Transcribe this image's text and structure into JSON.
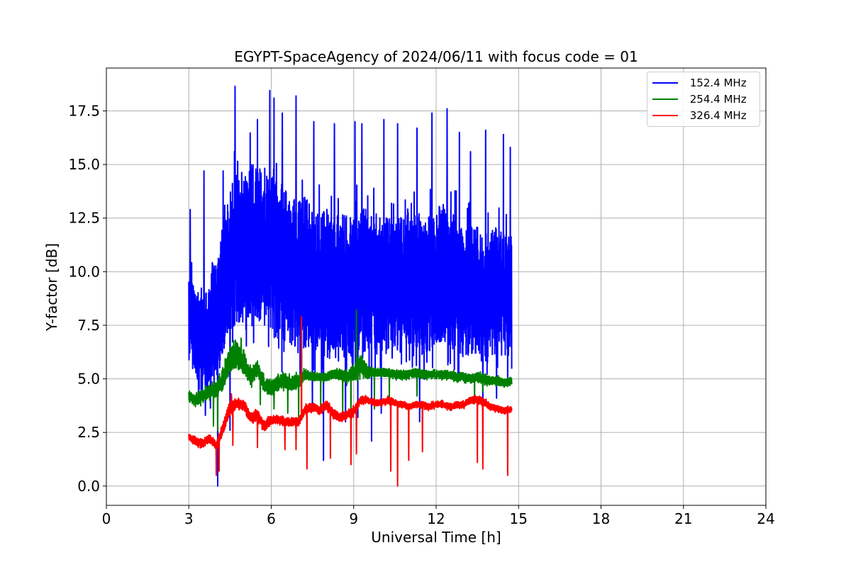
{
  "chart_data": {
    "type": "line",
    "title": "EGYPT-SpaceAgency of 2024/06/11 with focus code = 01",
    "xlabel": "Universal Time [h]",
    "ylabel": "Y-factor [dB]",
    "xlim": [
      0,
      24
    ],
    "ylim": [
      -0.9,
      19.5
    ],
    "xticks": [
      0,
      3,
      6,
      9,
      12,
      15,
      18,
      21,
      24
    ],
    "yticks": [
      0.0,
      2.5,
      5.0,
      7.5,
      10.0,
      12.5,
      15.0,
      17.5
    ],
    "xtick_labels": [
      "0",
      "3",
      "6",
      "9",
      "12",
      "15",
      "18",
      "21",
      "24"
    ],
    "ytick_labels": [
      "0.0",
      "2.5",
      "5.0",
      "7.5",
      "10.0",
      "12.5",
      "15.0",
      "17.5"
    ],
    "grid": true,
    "legend_position": "top-right",
    "series": [
      {
        "name": " 152.4 MHz",
        "color": "#0000ff",
        "x": [
          3.0,
          3.25,
          3.5,
          3.75,
          4.0,
          4.25,
          4.5,
          4.75,
          5.0,
          5.25,
          5.5,
          5.75,
          6.0,
          6.25,
          6.5,
          6.75,
          7.0,
          7.25,
          7.5,
          7.75,
          8.0,
          8.25,
          8.5,
          8.75,
          9.0,
          9.25,
          9.5,
          9.75,
          10.0,
          10.25,
          10.5,
          10.75,
          11.0,
          11.25,
          11.5,
          11.75,
          12.0,
          12.25,
          12.5,
          12.75,
          13.0,
          13.25,
          13.5,
          13.75,
          14.0,
          14.25,
          14.5,
          14.75
        ],
        "y": [
          8.0,
          7.2,
          6.8,
          7.0,
          8.0,
          9.5,
          10.5,
          11.2,
          11.0,
          11.5,
          11.3,
          11.0,
          10.8,
          10.5,
          10.3,
          10.0,
          9.8,
          10.0,
          9.6,
          9.5,
          9.4,
          9.3,
          9.2,
          9.4,
          9.3,
          9.5,
          9.7,
          9.6,
          9.5,
          9.3,
          9.2,
          9.4,
          9.6,
          9.5,
          9.3,
          9.4,
          9.8,
          10.0,
          9.6,
          9.4,
          9.0,
          9.2,
          8.8,
          8.7,
          9.1,
          9.0,
          8.9,
          9.0
        ],
        "amplitude": [
          2.0,
          2.2,
          2.4,
          2.6,
          2.8,
          3.2,
          3.4,
          3.6,
          3.6,
          3.6,
          3.6,
          3.8,
          3.8,
          3.8,
          3.6,
          3.6,
          3.6,
          3.6,
          3.4,
          3.4,
          3.4,
          3.4,
          3.4,
          3.4,
          3.4,
          3.4,
          3.4,
          3.2,
          3.2,
          3.2,
          3.2,
          3.2,
          3.2,
          3.2,
          3.2,
          3.2,
          3.2,
          3.2,
          3.2,
          3.2,
          3.0,
          3.0,
          3.0,
          3.0,
          3.0,
          3.0,
          3.0,
          2.8
        ],
        "spikes_up": [
          [
            3.05,
            12.9
          ],
          [
            3.55,
            14.7
          ],
          [
            4.25,
            14.7
          ],
          [
            4.68,
            18.65
          ],
          [
            5.5,
            17.1
          ],
          [
            5.95,
            18.45
          ],
          [
            6.1,
            18.1
          ],
          [
            6.4,
            17.4
          ],
          [
            6.9,
            18.2
          ],
          [
            7.55,
            17.0
          ],
          [
            8.3,
            16.9
          ],
          [
            9.05,
            17.0
          ],
          [
            9.3,
            16.9
          ],
          [
            9.65,
            17.8
          ],
          [
            10.1,
            17.1
          ],
          [
            10.6,
            16.9
          ],
          [
            11.3,
            16.7
          ],
          [
            11.85,
            17.4
          ],
          [
            12.4,
            17.6
          ],
          [
            12.85,
            16.5
          ],
          [
            13.25,
            15.6
          ],
          [
            13.8,
            16.6
          ],
          [
            14.45,
            16.4
          ],
          [
            14.7,
            15.8
          ]
        ],
        "spikes_down": [
          [
            3.35,
            4.2
          ],
          [
            3.6,
            3.3
          ],
          [
            4.05,
            0.0
          ],
          [
            4.5,
            2.6
          ],
          [
            7.5,
            3.6
          ],
          [
            7.9,
            1.2
          ],
          [
            8.7,
            3.0
          ],
          [
            9.15,
            3.2
          ],
          [
            9.65,
            2.1
          ],
          [
            10.0,
            3.4
          ],
          [
            11.4,
            3.0
          ],
          [
            13.7,
            3.6
          ],
          [
            14.2,
            4.1
          ],
          [
            14.6,
            4.8
          ]
        ]
      },
      {
        "name": " 254.4 MHz",
        "color": "#008000",
        "x": [
          3.0,
          3.25,
          3.5,
          3.75,
          4.0,
          4.25,
          4.5,
          4.75,
          5.0,
          5.25,
          5.5,
          5.75,
          6.0,
          6.25,
          6.5,
          6.75,
          7.0,
          7.25,
          7.5,
          7.75,
          8.0,
          8.25,
          8.5,
          8.75,
          9.0,
          9.25,
          9.5,
          9.75,
          10.0,
          10.25,
          10.5,
          10.75,
          11.0,
          11.25,
          11.5,
          11.75,
          12.0,
          12.25,
          12.5,
          12.75,
          13.0,
          13.25,
          13.5,
          13.75,
          14.0,
          14.25,
          14.5,
          14.75
        ],
        "y": [
          4.2,
          4.0,
          4.2,
          4.4,
          4.5,
          5.0,
          5.9,
          6.1,
          5.7,
          5.1,
          5.5,
          4.7,
          4.6,
          4.8,
          4.9,
          4.8,
          4.9,
          5.2,
          5.1,
          5.1,
          5.1,
          5.2,
          5.2,
          5.1,
          5.3,
          5.7,
          5.3,
          5.3,
          5.3,
          5.3,
          5.2,
          5.2,
          5.2,
          5.3,
          5.2,
          5.2,
          5.2,
          5.2,
          5.2,
          5.1,
          5.1,
          5.0,
          5.1,
          5.0,
          4.9,
          4.9,
          4.8,
          4.9
        ],
        "amplitude": [
          0.25,
          0.3,
          0.3,
          0.3,
          0.35,
          0.5,
          0.6,
          0.6,
          0.5,
          0.4,
          0.4,
          0.35,
          0.35,
          0.35,
          0.35,
          0.35,
          0.3,
          0.25,
          0.2,
          0.2,
          0.2,
          0.2,
          0.25,
          0.25,
          0.4,
          0.5,
          0.3,
          0.2,
          0.2,
          0.2,
          0.2,
          0.2,
          0.2,
          0.2,
          0.2,
          0.2,
          0.2,
          0.2,
          0.2,
          0.2,
          0.2,
          0.2,
          0.2,
          0.25,
          0.2,
          0.2,
          0.2,
          0.2
        ],
        "spikes_up": [
          [
            4.7,
            6.8
          ],
          [
            4.9,
            6.9
          ],
          [
            9.1,
            8.2
          ],
          [
            7.1,
            7.8
          ]
        ],
        "spikes_down": [
          [
            3.9,
            2.8
          ],
          [
            4.05,
            2.6
          ],
          [
            5.6,
            3.8
          ],
          [
            6.1,
            3.6
          ],
          [
            6.6,
            3.4
          ],
          [
            7.0,
            3.1
          ],
          [
            7.8,
            3.5
          ],
          [
            8.6,
            3.3
          ],
          [
            8.9,
            2.8
          ],
          [
            9.75,
            3.6
          ],
          [
            10.3,
            4.1
          ],
          [
            11.3,
            4.2
          ],
          [
            13.4,
            3.9
          ],
          [
            13.7,
            4.4
          ]
        ]
      },
      {
        "name": " 326.4 MHz",
        "color": "#ff0000",
        "x": [
          3.0,
          3.25,
          3.5,
          3.75,
          4.0,
          4.25,
          4.5,
          4.75,
          5.0,
          5.25,
          5.5,
          5.75,
          6.0,
          6.25,
          6.5,
          6.75,
          7.0,
          7.25,
          7.5,
          7.75,
          8.0,
          8.25,
          8.5,
          8.75,
          9.0,
          9.25,
          9.5,
          9.75,
          10.0,
          10.25,
          10.5,
          10.75,
          11.0,
          11.25,
          11.5,
          11.75,
          12.0,
          12.25,
          12.5,
          12.75,
          13.0,
          13.25,
          13.5,
          13.75,
          14.0,
          14.25,
          14.5,
          14.75
        ],
        "y": [
          2.3,
          2.1,
          2.0,
          2.2,
          1.9,
          2.7,
          3.7,
          3.8,
          3.8,
          3.2,
          3.3,
          2.8,
          3.1,
          3.1,
          3.0,
          3.0,
          3.0,
          3.6,
          3.7,
          3.5,
          3.8,
          3.4,
          3.2,
          3.3,
          3.5,
          4.0,
          4.0,
          3.9,
          3.9,
          4.0,
          3.9,
          3.8,
          3.7,
          3.8,
          3.8,
          3.7,
          3.8,
          3.8,
          3.7,
          3.8,
          3.8,
          4.0,
          4.0,
          3.9,
          3.7,
          3.6,
          3.5,
          3.6
        ],
        "amplitude": [
          0.15,
          0.2,
          0.2,
          0.2,
          0.25,
          0.3,
          0.3,
          0.25,
          0.25,
          0.25,
          0.25,
          0.25,
          0.2,
          0.2,
          0.2,
          0.2,
          0.2,
          0.2,
          0.2,
          0.2,
          0.2,
          0.2,
          0.2,
          0.2,
          0.2,
          0.2,
          0.15,
          0.15,
          0.15,
          0.15,
          0.15,
          0.15,
          0.15,
          0.15,
          0.15,
          0.15,
          0.15,
          0.15,
          0.15,
          0.15,
          0.15,
          0.15,
          0.2,
          0.2,
          0.15,
          0.15,
          0.15,
          0.15
        ],
        "spikes_up": [
          [
            7.1,
            7.9
          ],
          [
            4.55,
            4.3
          ]
        ],
        "spikes_down": [
          [
            4.0,
            0.5
          ],
          [
            4.1,
            0.7
          ],
          [
            4.6,
            1.9
          ],
          [
            5.5,
            1.8
          ],
          [
            6.5,
            1.7
          ],
          [
            6.9,
            1.7
          ],
          [
            7.3,
            0.8
          ],
          [
            8.15,
            1.3
          ],
          [
            8.9,
            1.0
          ],
          [
            9.1,
            1.5
          ],
          [
            10.35,
            0.7
          ],
          [
            10.6,
            0.0
          ],
          [
            11.0,
            1.2
          ],
          [
            11.5,
            1.6
          ],
          [
            13.5,
            1.1
          ],
          [
            13.7,
            0.8
          ],
          [
            14.6,
            0.5
          ]
        ]
      }
    ]
  }
}
